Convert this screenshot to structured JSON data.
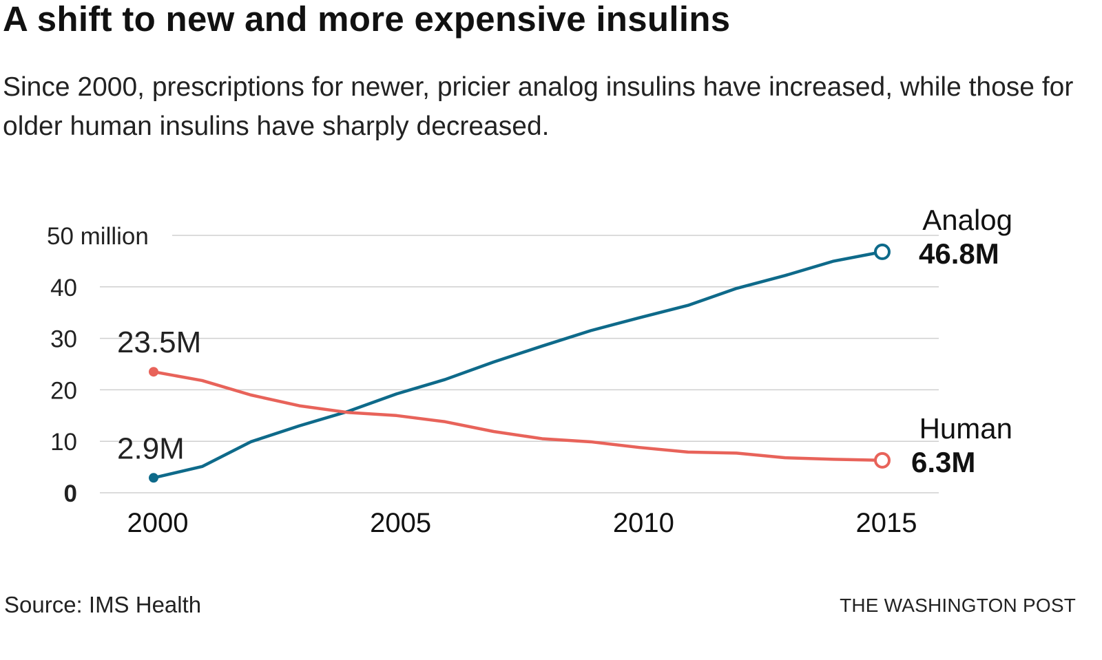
{
  "title": "A shift to new and more expensive insulins",
  "subtitle": "Since 2000, prescriptions for newer, pricier analog insulins have increased, while those for older human insulins have sharply decreased.",
  "source": "Source: IMS Health",
  "credit": "THE WASHINGTON POST",
  "chart_data": {
    "type": "line",
    "title": "A shift to new and more expensive insulins",
    "xlabel": "",
    "ylabel": "",
    "x": [
      2000,
      2001,
      2002,
      2003,
      2004,
      2005,
      2006,
      2007,
      2008,
      2009,
      2010,
      2011,
      2012,
      2013,
      2014,
      2015
    ],
    "xlim": [
      2000,
      2015
    ],
    "ylim": [
      0,
      50
    ],
    "grid": true,
    "x_ticks": [
      2000,
      2005,
      2010,
      2015
    ],
    "x_tick_labels": [
      "2000",
      "2005",
      "2010",
      "2015"
    ],
    "y_ticks": [
      0,
      10,
      20,
      30,
      40,
      50
    ],
    "y_tick_labels": [
      "0",
      "10",
      "20",
      "30",
      "40",
      "50 million"
    ],
    "series": [
      {
        "name": "Analog",
        "color": "#0e6a8a",
        "values": [
          2.9,
          5.1,
          9.9,
          13.0,
          15.8,
          19.2,
          22.0,
          25.4,
          28.5,
          31.5,
          34.0,
          36.4,
          39.7,
          42.2,
          45.0,
          46.8
        ],
        "start_label": "2.9M",
        "end_label": "46.8M"
      },
      {
        "name": "Human",
        "color": "#e8635a",
        "values": [
          23.5,
          21.8,
          19.0,
          16.9,
          15.6,
          15.0,
          13.8,
          11.9,
          10.5,
          9.9,
          8.8,
          7.9,
          7.7,
          6.8,
          6.5,
          6.3
        ],
        "start_label": "23.5M",
        "end_label": "6.3M"
      }
    ]
  }
}
